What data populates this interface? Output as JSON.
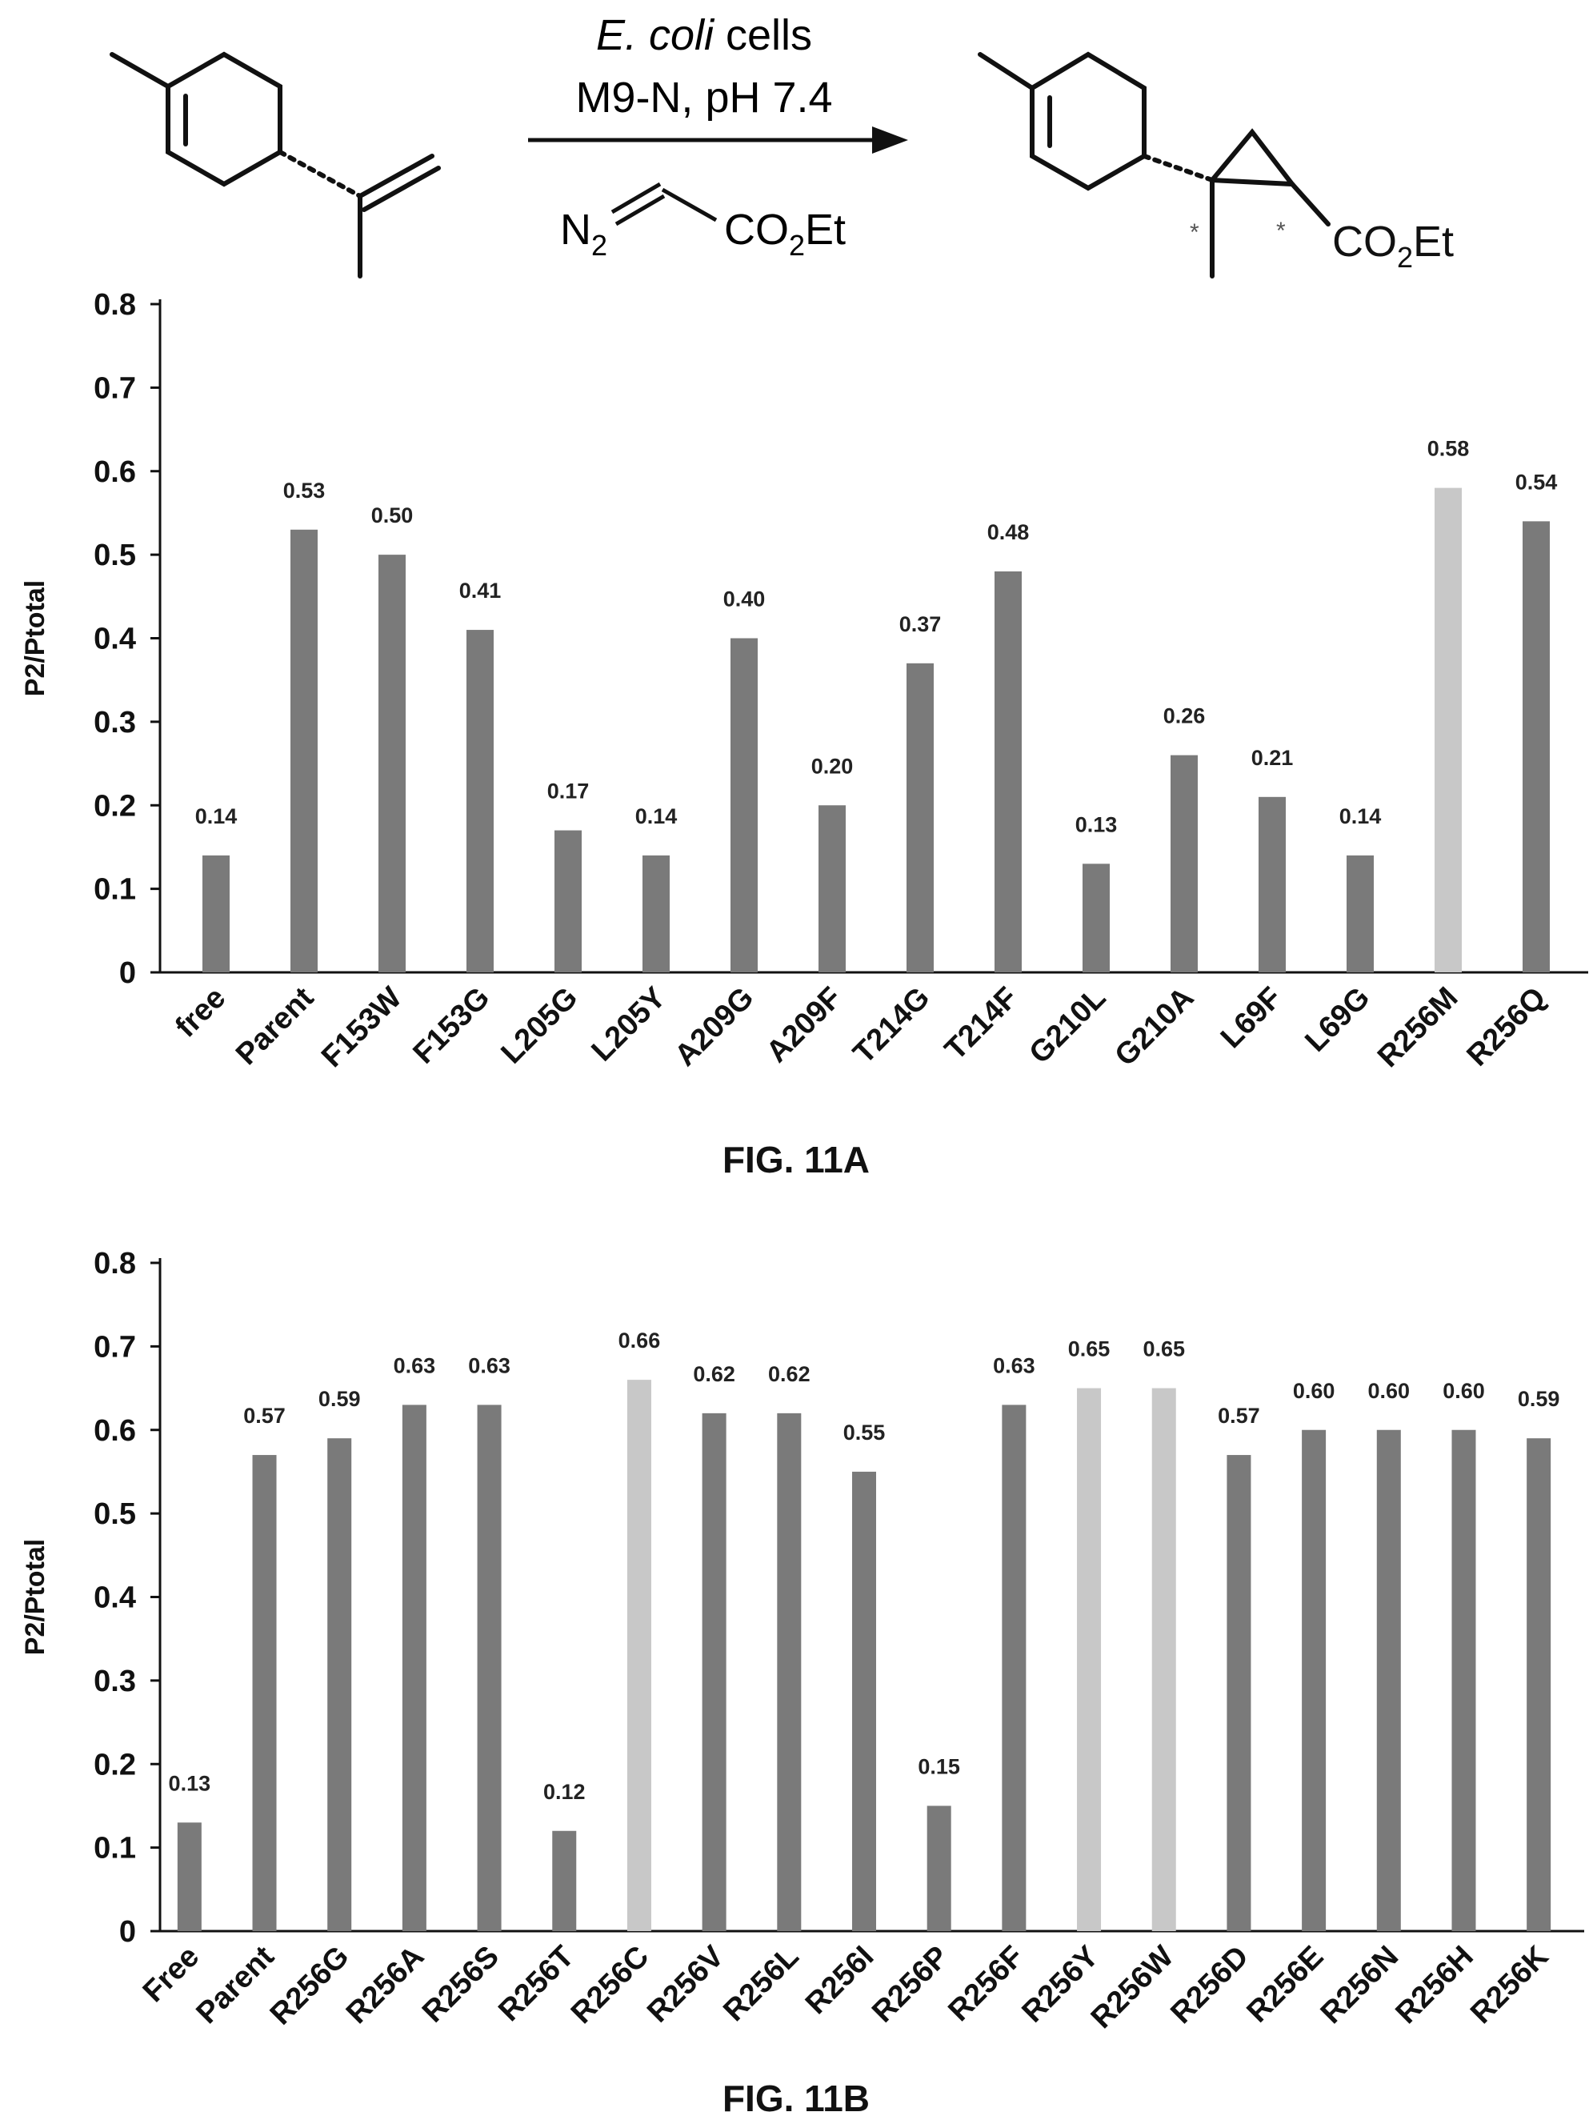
{
  "scheme": {
    "catalyst_prefix": "E. coli",
    "catalyst_suffix": " cells",
    "conditions": "M9-N, pH 7.4",
    "reagent_n": "N",
    "reagent_sub": "2",
    "ester_co": "CO",
    "ester_sub": "2",
    "ester_et": "Et",
    "stereo_mark": "*"
  },
  "colors": {
    "bar": "#7a7a7a",
    "bar_highlight": "#c8c8c8",
    "axis": "#111111"
  },
  "chart_data": [
    {
      "type": "bar",
      "caption": "FIG. 11A",
      "ylabel": "P2/Ptotal",
      "ylim": [
        0,
        0.8
      ],
      "yticks": [
        "0",
        "0.1",
        "0.2",
        "0.3",
        "0.4",
        "0.5",
        "0.6",
        "0.7",
        "0.8"
      ],
      "categories": [
        "free",
        "Parent",
        "F153W",
        "F153G",
        "L205G",
        "L205Y",
        "A209G",
        "A209F",
        "T214G",
        "T214F",
        "G210L",
        "G210A",
        "L69F",
        "L69G",
        "R256M",
        "R256Q"
      ],
      "values": [
        0.14,
        0.53,
        0.5,
        0.41,
        0.17,
        0.14,
        0.4,
        0.2,
        0.37,
        0.48,
        0.13,
        0.26,
        0.21,
        0.14,
        0.58,
        0.54
      ],
      "data_labels": [
        "0.14",
        "0.53",
        "0.50",
        "0.41",
        "0.17",
        "0.14",
        "0.40",
        "0.20",
        "0.37",
        "0.48",
        "0.13",
        "0.26",
        "0.21",
        "0.14",
        "0.58",
        "0.54"
      ],
      "highlight": [
        false,
        false,
        false,
        false,
        false,
        false,
        false,
        false,
        false,
        false,
        false,
        false,
        false,
        false,
        true,
        false
      ]
    },
    {
      "type": "bar",
      "caption": "FIG. 11B",
      "ylabel": "P2/Ptotal",
      "ylim": [
        0,
        0.8
      ],
      "yticks": [
        "0",
        "0.1",
        "0.2",
        "0.3",
        "0.4",
        "0.5",
        "0.6",
        "0.7",
        "0.8"
      ],
      "categories": [
        "Free",
        "Parent",
        "R256G",
        "R256A",
        "R256S",
        "R256T",
        "R256C",
        "R256V",
        "R256L",
        "R256I",
        "R256P",
        "R256F",
        "R256Y",
        "R256W",
        "R256D",
        "R256E",
        "R256N",
        "R256H",
        "R256K"
      ],
      "values": [
        0.13,
        0.57,
        0.59,
        0.63,
        0.63,
        0.12,
        0.66,
        0.62,
        0.62,
        0.55,
        0.15,
        0.63,
        0.65,
        0.65,
        0.57,
        0.6,
        0.6,
        0.6,
        0.59
      ],
      "data_labels": [
        "0.13",
        "0.57",
        "0.59",
        "0.63",
        "0.63",
        "0.12",
        "0.66",
        "0.62",
        "0.62",
        "0.55",
        "0.15",
        "0.63",
        "0.65",
        "0.65",
        "0.57",
        "0.60",
        "0.60",
        "0.60",
        "0.59"
      ],
      "highlight": [
        false,
        false,
        false,
        false,
        false,
        false,
        true,
        false,
        false,
        false,
        false,
        false,
        true,
        true,
        false,
        false,
        false,
        false,
        false
      ]
    }
  ]
}
